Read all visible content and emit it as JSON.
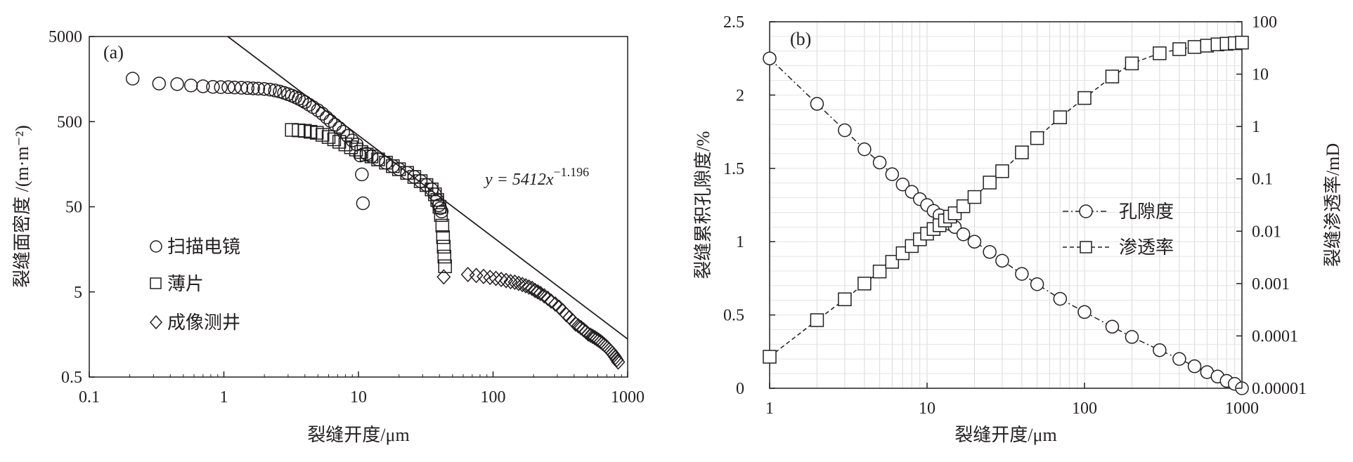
{
  "chart_data": [
    {
      "type": "scatter",
      "panel_label": "(a)",
      "xlabel": "裂缝开度/μm",
      "ylabel": "裂缝面密度 /(m·m⁻²)",
      "xscale": "log",
      "yscale": "log",
      "xlim": [
        0.1,
        1000
      ],
      "ylim": [
        0.5,
        5000
      ],
      "xticks": [
        "0.1",
        "1",
        "10",
        "100",
        "1000"
      ],
      "yticks": [
        "0.5",
        "5",
        "50",
        "500",
        "5000"
      ],
      "grid": false,
      "legend_position": "left-middle",
      "series": [
        {
          "name": "扫描电镜",
          "marker": "circle",
          "x": [
            0.21,
            0.33,
            0.45,
            0.57,
            0.7,
            0.83,
            0.95,
            1.08,
            1.2,
            1.35,
            1.5,
            1.65,
            1.8,
            2.0,
            2.2,
            2.4,
            2.6,
            2.8,
            3.0,
            3.2,
            3.4,
            3.6,
            3.8,
            4.0,
            4.3,
            4.6,
            5.0,
            5.4,
            5.8,
            6.2,
            6.7,
            7.2,
            7.7,
            8.3,
            9.0,
            9.7,
            10.3,
            10.6,
            10.8,
            11.5,
            12.5,
            14.0,
            16.0,
            18.0,
            20.0,
            23.0,
            26.0,
            29.0,
            32.0,
            35.0,
            37.0,
            38.5,
            39.5,
            40.5,
            41.5
          ],
          "y": [
            1600,
            1400,
            1380,
            1330,
            1300,
            1280,
            1270,
            1270,
            1260,
            1250,
            1240,
            1230,
            1220,
            1210,
            1190,
            1160,
            1130,
            1090,
            1050,
            1010,
            970,
            930,
            890,
            850,
            790,
            740,
            680,
            620,
            560,
            510,
            460,
            420,
            380,
            340,
            300,
            270,
            200,
            120,
            55,
            210,
            195,
            180,
            165,
            150,
            138,
            125,
            112,
            100,
            90,
            80,
            70,
            60,
            52,
            48,
            44
          ]
        },
        {
          "name": "薄片",
          "marker": "square",
          "x": [
            3.2,
            3.6,
            4.0,
            4.4,
            4.9,
            5.4,
            6.0,
            6.6,
            7.2,
            8.0,
            8.8,
            9.6,
            10.5,
            11.5,
            12.5,
            14.0,
            16.0,
            18.0,
            20.0,
            23.0,
            26.0,
            29.0,
            32.0,
            35.0,
            37.0,
            38.5,
            40.0,
            41.0,
            42.0,
            42.5,
            43.0,
            43.5,
            44.0
          ],
          "y": [
            400,
            395,
            390,
            380,
            370,
            350,
            330,
            310,
            290,
            270,
            250,
            235,
            220,
            205,
            195,
            180,
            165,
            150,
            138,
            125,
            112,
            100,
            90,
            80,
            70,
            60,
            50,
            40,
            30,
            22,
            17,
            13,
            10
          ]
        },
        {
          "name": "成像测井",
          "marker": "diamond",
          "x": [
            43,
            65,
            75,
            85,
            95,
            105,
            115,
            125,
            135,
            145,
            155,
            165,
            175,
            185,
            195,
            205,
            215,
            225,
            240,
            255,
            270,
            290,
            310,
            330,
            350,
            370,
            390,
            410,
            430,
            450,
            470,
            490,
            510,
            530,
            550,
            570,
            590,
            610,
            630,
            650,
            670,
            690,
            710,
            730,
            750,
            770,
            790,
            810,
            830,
            850
          ],
          "y": [
            7.5,
            8,
            7.8,
            7.6,
            7.4,
            7.2,
            7.0,
            6.8,
            6.6,
            6.5,
            6.3,
            6.1,
            5.9,
            5.7,
            5.5,
            5.2,
            5.0,
            4.8,
            4.5,
            4.2,
            3.9,
            3.6,
            3.3,
            3.0,
            2.7,
            2.5,
            2.3,
            2.1,
            2.0,
            1.9,
            1.8,
            1.7,
            1.6,
            1.55,
            1.5,
            1.45,
            1.4,
            1.35,
            1.3,
            1.25,
            1.2,
            1.15,
            1.1,
            1.05,
            1.0,
            0.95,
            0.9,
            0.85,
            0.8,
            0.75
          ]
        }
      ],
      "fit": {
        "equation_text": "y = 5412x",
        "exponent_text": "−1.196",
        "a": 5412,
        "b": -1.196
      }
    },
    {
      "type": "line",
      "panel_label": "(b)",
      "xlabel": "裂缝开度/μm",
      "ylabel_left": "裂缝累积孔隙度/%",
      "ylabel_right": "裂缝渗透率/mD",
      "xscale": "log",
      "xlim": [
        1,
        1000
      ],
      "y_left_lim": [
        0,
        2.5
      ],
      "y_right_scale": "log",
      "y_right_lim": [
        1e-05,
        100
      ],
      "xticks": [
        "1",
        "10",
        "100",
        "1000"
      ],
      "y_left_ticks": [
        "0",
        "0.5",
        "1",
        "1.5",
        "2",
        "2.5"
      ],
      "y_right_ticks": [
        "0.00001",
        "0.0001",
        "0.001",
        "0.01",
        "0.1",
        "1",
        "10",
        "100"
      ],
      "grid": true,
      "legend_position": "right-middle",
      "series": [
        {
          "name": "孔隙度",
          "marker": "circle",
          "line": "dash-dot",
          "axis": "left",
          "x": [
            1,
            2,
            3,
            4,
            5,
            6,
            7,
            8,
            9,
            10,
            11,
            12,
            13,
            14,
            15,
            17,
            20,
            25,
            30,
            40,
            50,
            70,
            100,
            150,
            200,
            300,
            400,
            500,
            600,
            700,
            800,
            900,
            1000
          ],
          "y": [
            2.25,
            1.94,
            1.76,
            1.63,
            1.54,
            1.46,
            1.39,
            1.34,
            1.29,
            1.25,
            1.21,
            1.18,
            1.15,
            1.12,
            1.1,
            1.05,
            1.0,
            0.93,
            0.87,
            0.78,
            0.71,
            0.61,
            0.52,
            0.42,
            0.35,
            0.26,
            0.2,
            0.15,
            0.11,
            0.08,
            0.05,
            0.03,
            0.0
          ]
        },
        {
          "name": "渗透率",
          "marker": "square",
          "line": "dashed",
          "axis": "right",
          "x": [
            1,
            2,
            3,
            4,
            5,
            6,
            7,
            8,
            9,
            10,
            11,
            12,
            13,
            14,
            15,
            17,
            20,
            25,
            30,
            40,
            50,
            70,
            100,
            150,
            200,
            300,
            400,
            500,
            600,
            700,
            800,
            900,
            1000
          ],
          "y": [
            4e-05,
            0.0002,
            0.0005,
            0.001,
            0.0017,
            0.0026,
            0.0038,
            0.0052,
            0.007,
            0.009,
            0.011,
            0.013,
            0.016,
            0.019,
            0.022,
            0.03,
            0.045,
            0.085,
            0.14,
            0.32,
            0.6,
            1.5,
            3.5,
            9,
            16,
            25,
            30,
            33,
            35,
            37,
            38,
            39,
            40
          ]
        }
      ]
    }
  ]
}
